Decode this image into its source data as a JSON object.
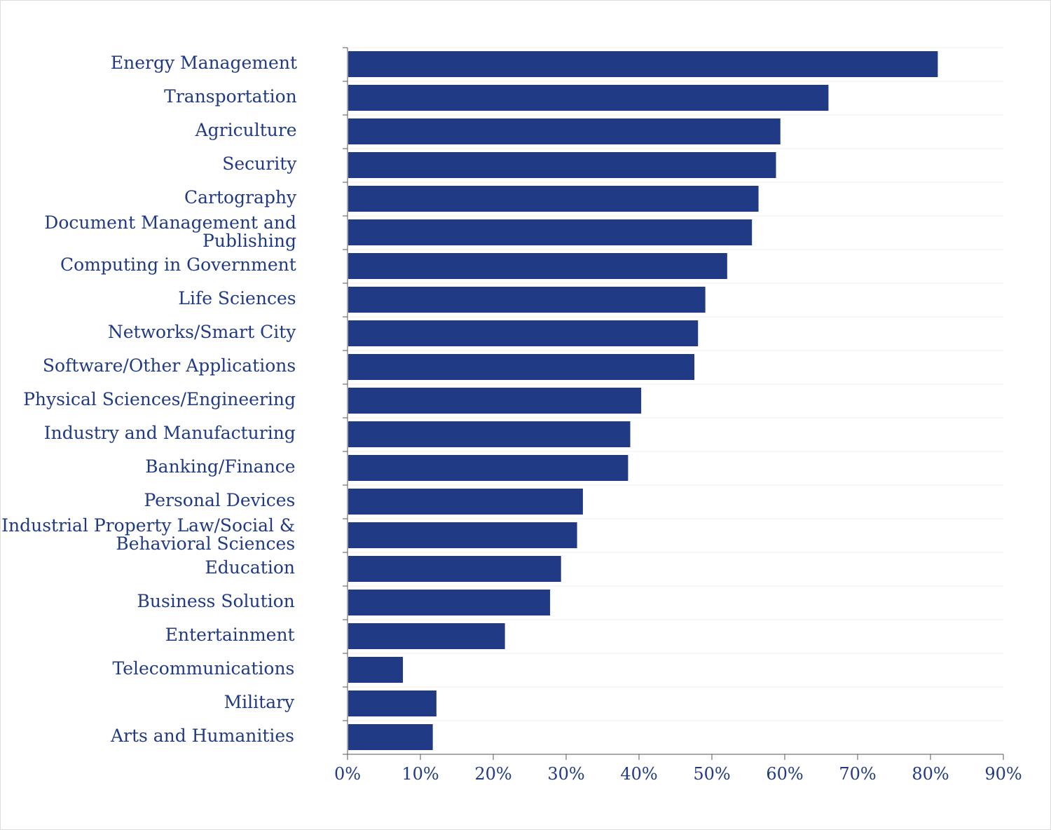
{
  "chart_data": {
    "type": "bar",
    "orientation": "horizontal",
    "title": "",
    "xlabel": "",
    "ylabel": "",
    "xlim": [
      0,
      90
    ],
    "x_ticks": [
      "0%",
      "10%",
      "20%",
      "30%",
      "40%",
      "50%",
      "60%",
      "70%",
      "80%",
      "90%"
    ],
    "x_tick_values": [
      0,
      10,
      20,
      30,
      40,
      50,
      60,
      70,
      80,
      90
    ],
    "grid": true,
    "bar_color": "#213a86",
    "categories": [
      "Energy Management",
      "Transportation",
      "Agriculture",
      "Security",
      "Cartography",
      "Document Management and|Publishing",
      "Computing in Government",
      "Life Sciences",
      "Networks/Smart City",
      "Software/Other Applications",
      "Physical Sciences/Engineering",
      "Industry and Manufacturing",
      "Banking/Finance",
      "Personal Devices",
      "Industrial Property Law/Social &|Behavioral Sciences",
      "Education",
      "Business Solution",
      "Entertainment",
      "Telecommunications",
      "Military",
      "Arts and Humanities"
    ],
    "values": [
      81.0,
      66.0,
      59.4,
      58.8,
      56.4,
      55.5,
      52.1,
      49.1,
      48.1,
      47.6,
      40.3,
      38.8,
      38.5,
      32.3,
      31.5,
      29.3,
      27.8,
      21.6,
      7.6,
      12.2,
      11.7
    ]
  }
}
